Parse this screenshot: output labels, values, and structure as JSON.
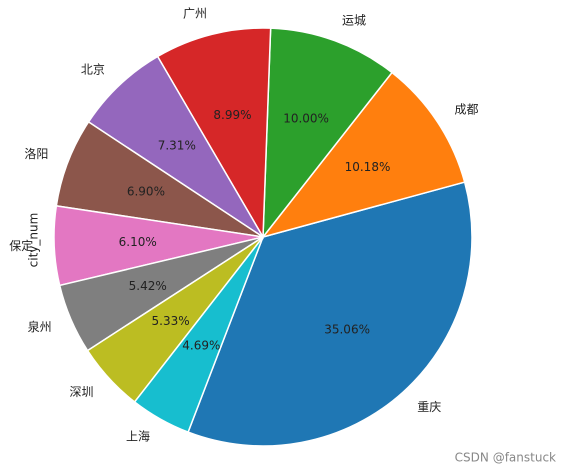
{
  "chart_data": {
    "type": "pie",
    "ylabel": "city_num",
    "categories": [
      "重庆",
      "成都",
      "运城",
      "广州",
      "北京",
      "洛阳",
      "保定",
      "泉州",
      "深圳",
      "上海"
    ],
    "values": [
      35.06,
      10.18,
      10.0,
      8.99,
      7.31,
      6.9,
      6.1,
      5.42,
      5.33,
      4.69
    ],
    "value_labels": [
      "35.06%",
      "10.18%",
      "10.00%",
      "8.99%",
      "7.31%",
      "6.90%",
      "6.10%",
      "5.42%",
      "5.33%",
      "4.69%"
    ],
    "colors": [
      "#1f77b4",
      "#ff7f0e",
      "#2ca02c",
      "#d62728",
      "#9467bd",
      "#8c564b",
      "#e377c2",
      "#7f7f7f",
      "#bcbd22",
      "#17becf"
    ]
  },
  "watermark": "CSDN @fanstuck"
}
